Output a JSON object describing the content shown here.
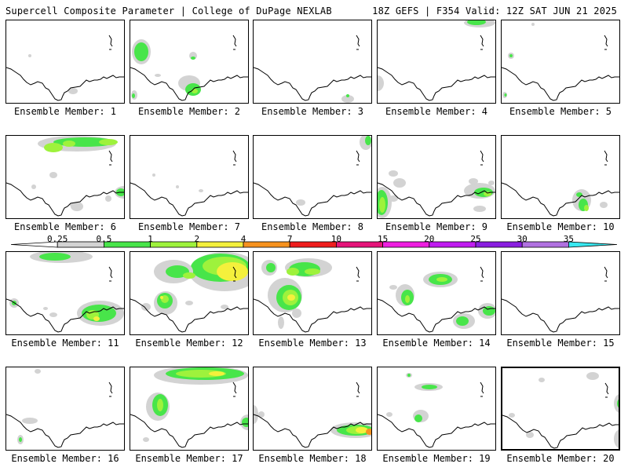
{
  "header": {
    "left_title": "Supercell Composite Parameter | College of DuPage NEXLAB",
    "right_title": "18Z GEFS | F354 Valid: 12Z SAT JUN 21 2025"
  },
  "colorbar": {
    "labels": [
      "0.25",
      "0.5",
      "1",
      "2",
      "4",
      "7",
      "10",
      "15",
      "20",
      "25",
      "30",
      "35"
    ],
    "colors": [
      "#d3d3d3",
      "#48e54a",
      "#9ef23c",
      "#f4f03c",
      "#f6921e",
      "#ef1d1d",
      "#e6147a",
      "#ee1ee0",
      "#c01cf0",
      "#8a1ee0",
      "#b070e0",
      "#38e8f0"
    ]
  },
  "panels": [
    {
      "label": "Ensemble Member: 1"
    },
    {
      "label": "Ensemble Member: 2"
    },
    {
      "label": "Ensemble Member: 3"
    },
    {
      "label": "Ensemble Member: 4"
    },
    {
      "label": "Ensemble Member: 5"
    },
    {
      "label": "Ensemble Member: 6"
    },
    {
      "label": "Ensemble Member: 7"
    },
    {
      "label": "Ensemble Member: 8"
    },
    {
      "label": "Ensemble Member: 9"
    },
    {
      "label": "Ensemble Member: 10"
    },
    {
      "label": "Ensemble Member: 11"
    },
    {
      "label": "Ensemble Member: 12"
    },
    {
      "label": "Ensemble Member: 13"
    },
    {
      "label": "Ensemble Member: 14"
    },
    {
      "label": "Ensemble Member: 15"
    },
    {
      "label": "Ensemble Member: 16"
    },
    {
      "label": "Ensemble Member: 17"
    },
    {
      "label": "Ensemble Member: 18"
    },
    {
      "label": "Ensemble Member: 19"
    },
    {
      "label": "Ensemble Member: 20"
    }
  ]
}
